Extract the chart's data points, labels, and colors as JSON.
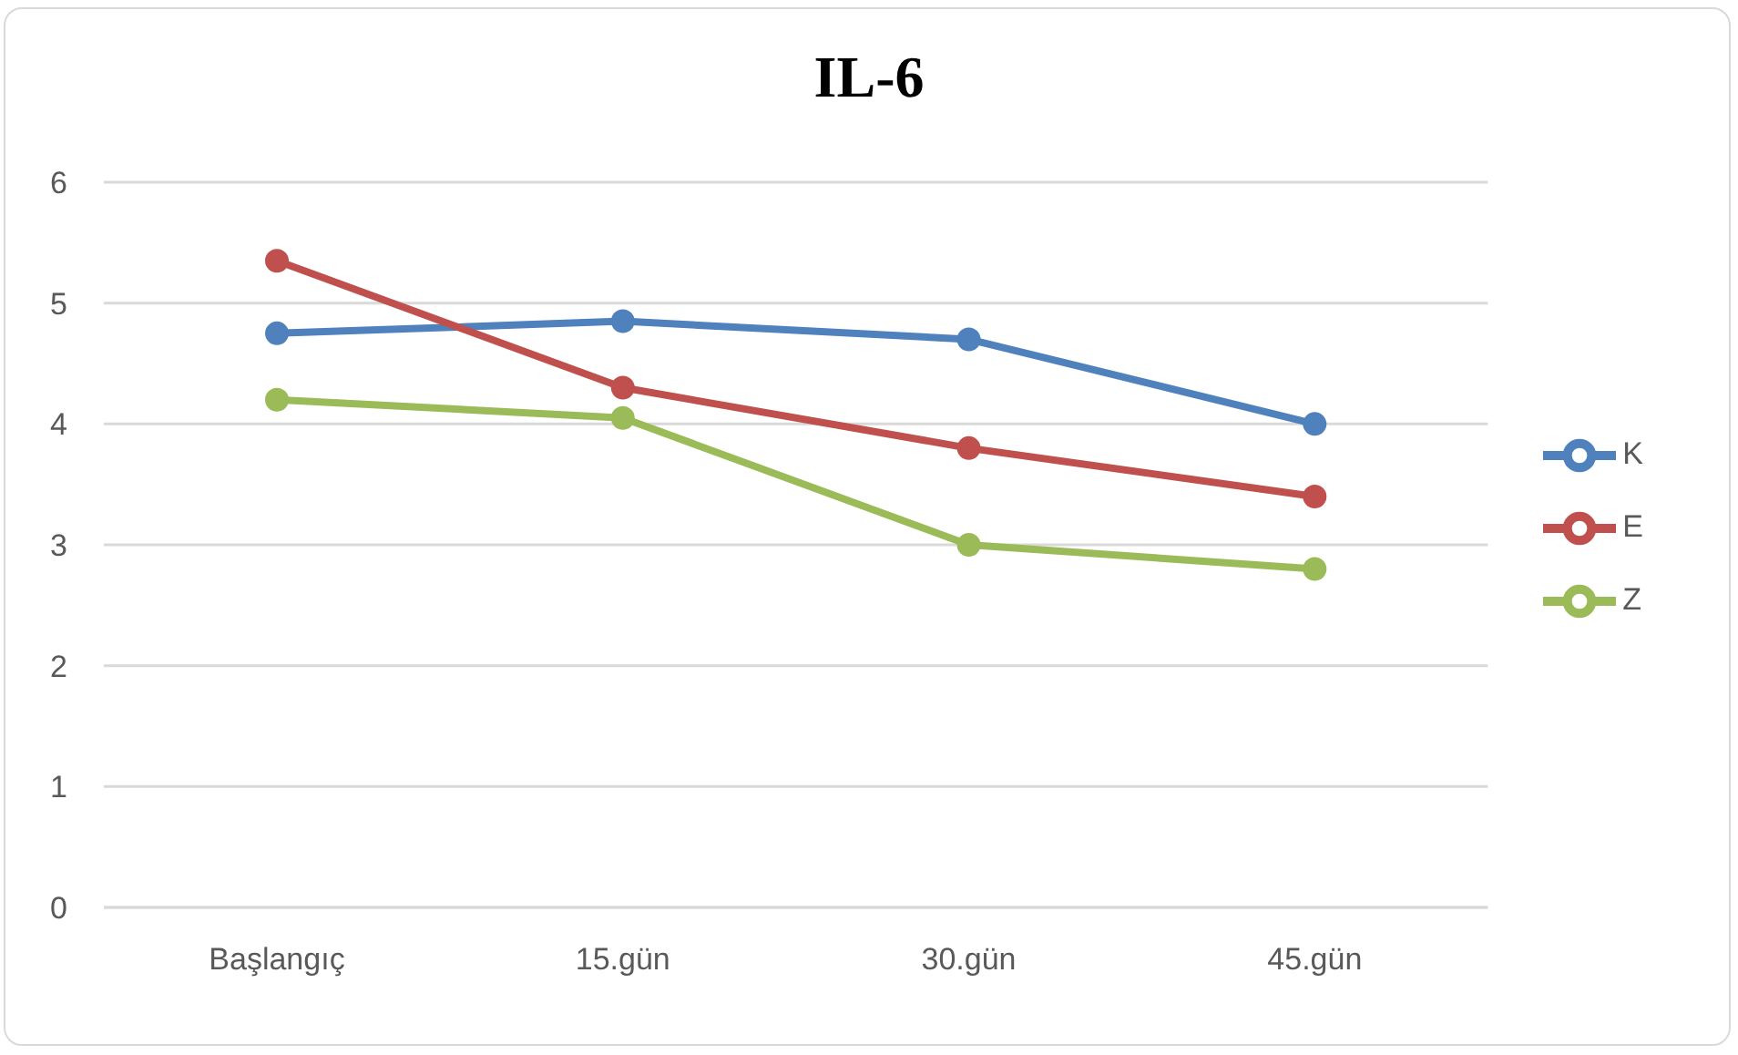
{
  "chart_data": {
    "type": "line",
    "title": "IL-6",
    "categories": [
      "Başlangıç",
      "15.gün",
      "30.gün",
      "45.gün"
    ],
    "series": [
      {
        "name": "K",
        "color": "#4f81bd",
        "values": [
          4.75,
          4.85,
          4.7,
          4.0
        ]
      },
      {
        "name": "E",
        "color": "#c0504d",
        "values": [
          5.35,
          4.3,
          3.8,
          3.4
        ]
      },
      {
        "name": "Z",
        "color": "#9bbb59",
        "values": [
          4.2,
          4.05,
          3.0,
          2.8
        ]
      }
    ],
    "ylim": [
      0,
      6
    ],
    "yticks": [
      0,
      1,
      2,
      3,
      4,
      5,
      6
    ],
    "grid": "y",
    "legend": "right",
    "marker": "circle"
  }
}
